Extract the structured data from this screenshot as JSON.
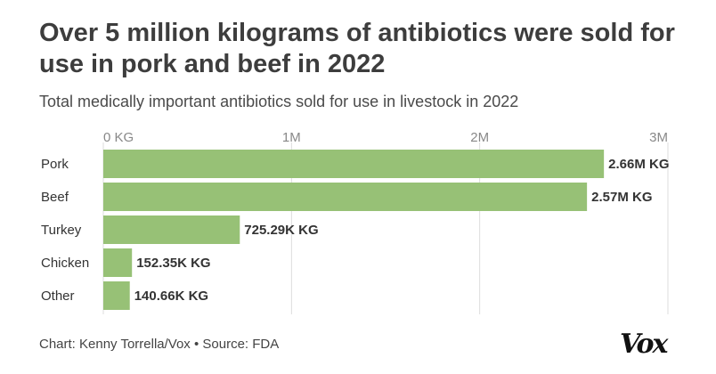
{
  "title": "Over 5 million kilograms of antibiotics were sold for use in pork and beef in 2022",
  "subtitle": "Total medically important antibiotics sold for use in livestock in 2022",
  "source": "Chart: Kenny Torrella/Vox • Source: FDA",
  "logo": "Vox",
  "colors": {
    "bar": "#97c176",
    "grid": "#dddddd",
    "text": "#333333"
  },
  "chart_data": {
    "type": "bar",
    "orientation": "horizontal",
    "categories": [
      "Pork",
      "Beef",
      "Turkey",
      "Chicken",
      "Other"
    ],
    "values": [
      2660000,
      2570000,
      725290,
      152350,
      140660
    ],
    "value_labels": [
      "2.66M KG",
      "2.57M KG",
      "725.29K KG",
      "152.35K KG",
      "140.66K KG"
    ],
    "unit": "KG",
    "xlim": [
      0,
      3000000
    ],
    "xticks": [
      0,
      1000000,
      2000000,
      3000000
    ],
    "xtick_labels": [
      "0 KG",
      "1M",
      "2M",
      "3M"
    ],
    "xaxis_position": "top",
    "grid": true,
    "legend": false
  }
}
